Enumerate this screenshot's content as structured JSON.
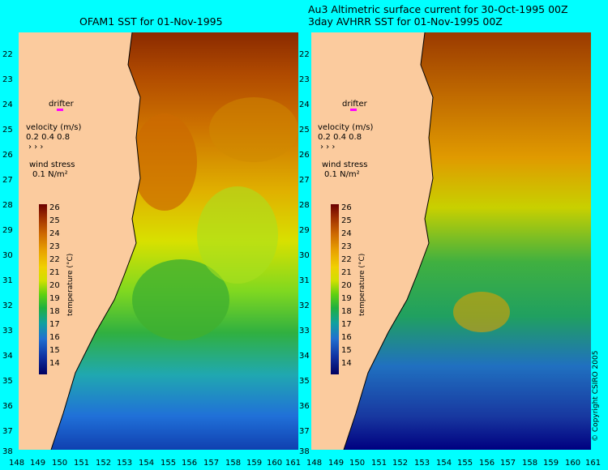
{
  "left_panel": {
    "title": "OFAM1 SST for 01-Nov-1995",
    "legend": {
      "drifter": "drifter",
      "velocity": "velocity (m/s)",
      "velocity_scale": "0.2 0.4 0.8",
      "wind_stress": "wind stress",
      "wind_value": "0.1 N/m²"
    }
  },
  "right_panel": {
    "title_line1": "Au3 Altimetric surface current for 30-Oct-1995 00Z",
    "title_line2": "3day AVHRR SST for 01-Nov-1995 00Z",
    "legend": {
      "drifter": "drifter",
      "velocity": "velocity (m/s)",
      "velocity_scale": "0.2 0.4 0.8",
      "wind_stress": "wind stress",
      "wind_value": "0.1 N/m²"
    },
    "copyright": "© Copyright CSIRO 2005"
  },
  "colorbar": {
    "label": "temperature (°C)",
    "ticks": [
      "26",
      "25",
      "24",
      "23",
      "22",
      "21",
      "20",
      "19",
      "18",
      "17",
      "16",
      "15",
      "14"
    ]
  },
  "lat_labels": [
    "22",
    "23",
    "24",
    "25",
    "26",
    "27",
    "28",
    "29",
    "30",
    "31",
    "32",
    "33",
    "34",
    "35",
    "36",
    "37",
    "38"
  ],
  "left_lon_labels": [
    "148",
    "149",
    "150",
    "151",
    "152",
    "153",
    "154",
    "155",
    "156",
    "157",
    "158",
    "159",
    "160",
    "161"
  ],
  "right_lon_labels": [
    "148",
    "149",
    "150",
    "151",
    "152",
    "153",
    "154",
    "155",
    "156",
    "157",
    "158",
    "159",
    "160",
    "161"
  ],
  "colors": {
    "background": "#00ffff",
    "land": "#fbcb9e",
    "drifter": "#ff00ff"
  }
}
